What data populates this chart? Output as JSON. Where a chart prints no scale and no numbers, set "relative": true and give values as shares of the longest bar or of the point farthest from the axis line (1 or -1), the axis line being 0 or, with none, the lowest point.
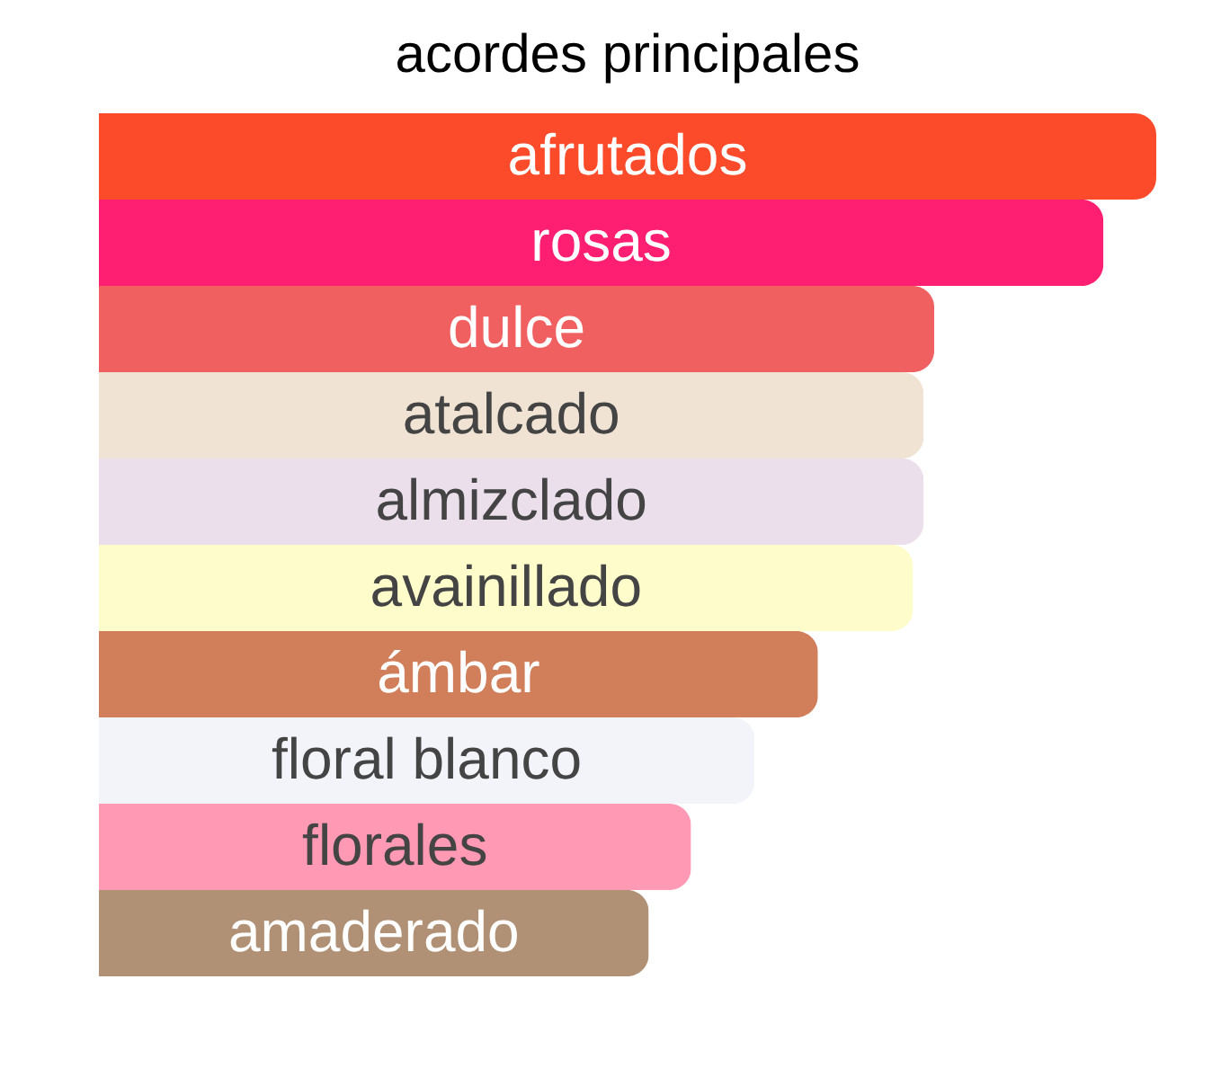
{
  "chart_data": {
    "type": "bar",
    "orientation": "horizontal",
    "relative": true,
    "title": "acordes principales",
    "categories": [
      "afrutados",
      "rosas",
      "dulce",
      "atalcado",
      "almizclado",
      "avainillado",
      "ámbar",
      "floral blanco",
      "florales",
      "amaderado"
    ],
    "values": [
      1,
      0.95,
      0.79,
      0.78,
      0.78,
      0.77,
      0.68,
      0.62,
      0.56,
      0.52
    ],
    "colors": [
      "#fc4b2a",
      "#fe1f72",
      "#f06060",
      "#f1e3d4",
      "#ebdfec",
      "#fffccc",
      "#d17e5a",
      "#f2f4f9",
      "#ff99b4",
      "#b09175"
    ]
  }
}
